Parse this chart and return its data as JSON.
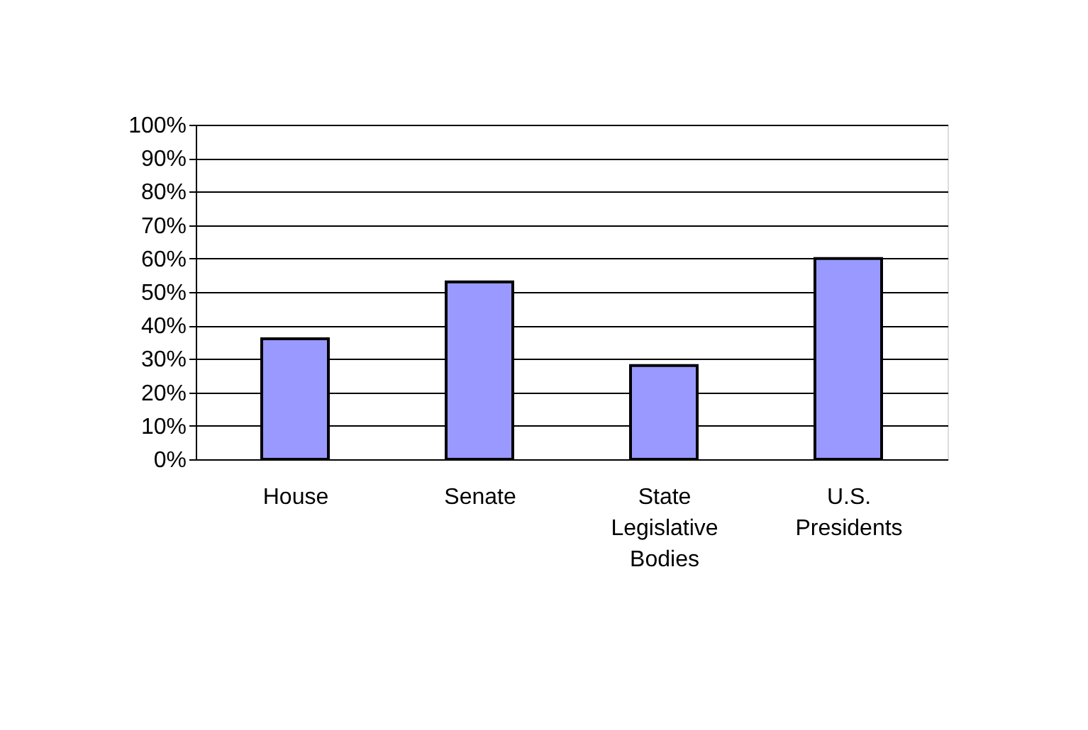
{
  "chart_data": {
    "type": "bar",
    "categories": [
      "House",
      "Senate",
      "State Legislative Bodies",
      "U.S. Presidents"
    ],
    "values": [
      36,
      53,
      28,
      60
    ],
    "color": "#9999ff",
    "ylim": [
      0,
      100
    ],
    "yticks": [
      {
        "value": 0,
        "label": "0%"
      },
      {
        "value": 10,
        "label": "10%"
      },
      {
        "value": 20,
        "label": "20%"
      },
      {
        "value": 30,
        "label": "30%"
      },
      {
        "value": 40,
        "label": "40%"
      },
      {
        "value": 50,
        "label": "50%"
      },
      {
        "value": 60,
        "label": "60%"
      },
      {
        "value": 70,
        "label": "70%"
      },
      {
        "value": 80,
        "label": "80%"
      },
      {
        "value": 90,
        "label": "90%"
      },
      {
        "value": 100,
        "label": "100%"
      }
    ],
    "grid": "y"
  }
}
